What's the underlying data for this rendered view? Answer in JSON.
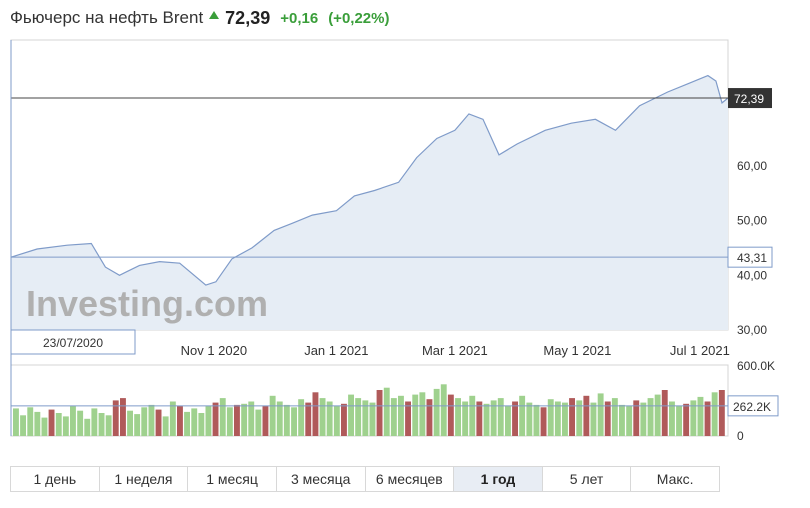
{
  "header": {
    "title": "Фьючерс на нефть Brent",
    "price": "72,39",
    "change": "+0,16",
    "change_pct": "(+0,22%)"
  },
  "chart_data": {
    "type": "area",
    "x_start": "2020-07-23",
    "x_end": "2021-07-15",
    "x_tick_labels": [
      "Nov 1 2020",
      "Jan 1 2021",
      "Mar 1 2021",
      "May 1 2021",
      "Jul 1 2021"
    ],
    "x_tick_dates": [
      "2020-11-01",
      "2021-01-01",
      "2021-03-01",
      "2021-05-01",
      "2021-07-01"
    ],
    "y_tick_labels": [
      "30,00",
      "40,00",
      "50,00",
      "60,00"
    ],
    "y_ticks": [
      30,
      40,
      50,
      60
    ],
    "ylim": [
      30,
      83
    ],
    "crosshair_date_label": "23/07/2020",
    "last_price_label": "72,39",
    "last_price": 72.39,
    "reference_label": "43,31",
    "reference_price": 43.31,
    "watermark": "Investing.com",
    "series": [
      {
        "x": [
          "2020-07-23",
          "2020-08-05",
          "2020-08-20",
          "2020-09-01",
          "2020-09-08",
          "2020-09-15",
          "2020-09-25",
          "2020-10-05",
          "2020-10-15",
          "2020-10-28",
          "2020-11-02",
          "2020-11-10",
          "2020-11-20",
          "2020-12-01",
          "2020-12-10",
          "2020-12-20",
          "2021-01-01",
          "2021-01-10",
          "2021-01-20",
          "2021-02-01",
          "2021-02-10",
          "2021-02-20",
          "2021-03-01",
          "2021-03-08",
          "2021-03-15",
          "2021-03-23",
          "2021-04-01",
          "2021-04-15",
          "2021-04-28",
          "2021-05-10",
          "2021-05-20",
          "2021-06-01",
          "2021-06-15",
          "2021-06-25",
          "2021-07-05",
          "2021-07-09",
          "2021-07-12",
          "2021-07-15"
        ],
        "y": [
          43.3,
          44.8,
          45.5,
          45.8,
          41.5,
          40.0,
          41.8,
          42.5,
          42.2,
          38.2,
          38.8,
          43.0,
          45.0,
          48.2,
          49.5,
          51.0,
          51.8,
          54.5,
          55.5,
          57.0,
          61.5,
          65.0,
          66.5,
          69.5,
          68.5,
          62.0,
          64.0,
          66.5,
          67.8,
          68.5,
          66.5,
          71.0,
          73.5,
          75.0,
          76.5,
          75.5,
          71.5,
          72.4
        ]
      }
    ],
    "volume": {
      "y_tick_labels": [
        "600.0K",
        "0"
      ],
      "ylim": [
        0,
        600000
      ],
      "current_label": "262.2K",
      "current": 262200,
      "values": [
        240000,
        180000,
        250000,
        210000,
        160000,
        230000,
        200000,
        170000,
        260000,
        220000,
        150000,
        240000,
        200000,
        180000,
        310000,
        330000,
        220000,
        190000,
        250000,
        270000,
        230000,
        170000,
        300000,
        260000,
        210000,
        240000,
        200000,
        260000,
        290000,
        330000,
        250000,
        270000,
        280000,
        300000,
        230000,
        260000,
        350000,
        300000,
        270000,
        250000,
        320000,
        290000,
        380000,
        330000,
        300000,
        260000,
        280000,
        360000,
        330000,
        310000,
        290000,
        400000,
        420000,
        330000,
        350000,
        300000,
        360000,
        380000,
        320000,
        410000,
        450000,
        360000,
        330000,
        300000,
        350000,
        300000,
        280000,
        310000,
        330000,
        260000,
        300000,
        350000,
        290000,
        270000,
        250000,
        320000,
        300000,
        290000,
        330000,
        310000,
        350000,
        290000,
        370000,
        300000,
        330000,
        270000,
        260000,
        310000,
        290000,
        330000,
        360000,
        400000,
        300000,
        260000,
        280000,
        310000,
        340000,
        300000,
        380000,
        400000
      ],
      "down": [
        0,
        0,
        0,
        0,
        0,
        1,
        0,
        0,
        0,
        0,
        0,
        0,
        0,
        0,
        1,
        1,
        0,
        0,
        0,
        0,
        1,
        0,
        0,
        1,
        0,
        0,
        0,
        0,
        1,
        0,
        0,
        1,
        0,
        0,
        0,
        1,
        0,
        0,
        0,
        0,
        0,
        1,
        1,
        0,
        0,
        0,
        1,
        0,
        0,
        0,
        0,
        1,
        0,
        0,
        0,
        1,
        0,
        0,
        1,
        0,
        0,
        1,
        0,
        0,
        0,
        1,
        0,
        0,
        0,
        0,
        1,
        0,
        0,
        0,
        1,
        0,
        0,
        0,
        1,
        0,
        1,
        0,
        0,
        1,
        0,
        0,
        0,
        1,
        0,
        0,
        0,
        1,
        0,
        0,
        1,
        0,
        0,
        1,
        0,
        1
      ]
    }
  },
  "periods": [
    "1 день",
    "1 неделя",
    "1 месяц",
    "3 месяца",
    "6 месяцев",
    "1 год",
    "5 лет",
    "Макс."
  ],
  "active_period": "1 год",
  "colors": {
    "line": "#7f9bc9",
    "area": "#e6edf5",
    "up_bar": "#9fd18e",
    "down_bar": "#b05a5a",
    "positive": "#3a9e3a"
  }
}
